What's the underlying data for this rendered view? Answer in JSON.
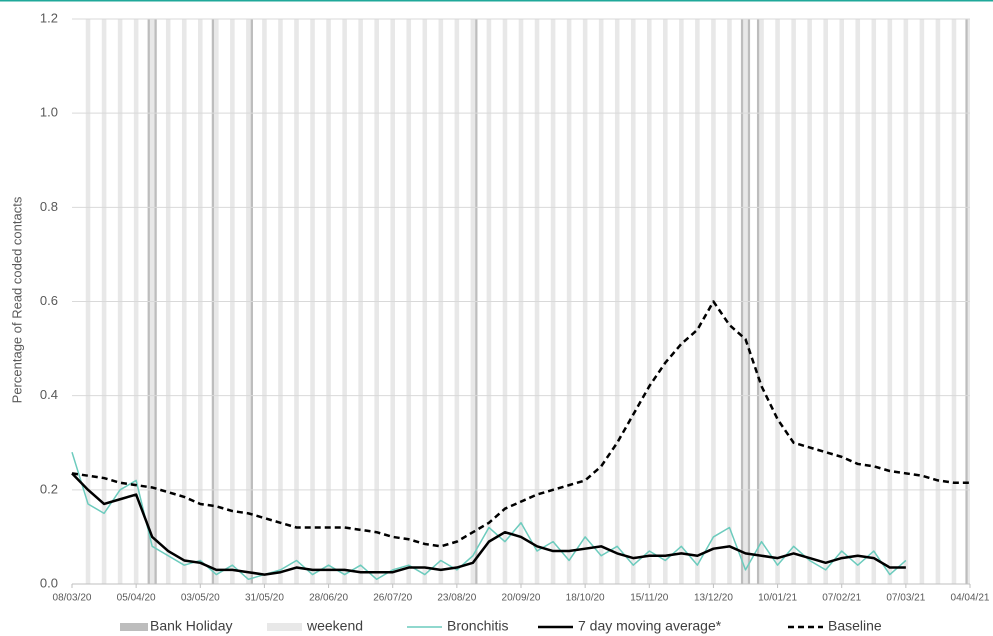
{
  "chart_data": {
    "type": "line",
    "y_label": "Percentage of Read coded contacts",
    "x": [
      "08/03/20",
      "15/03/20",
      "22/03/20",
      "29/03/20",
      "05/04/20",
      "12/04/20",
      "19/04/20",
      "26/04/20",
      "03/05/20",
      "10/05/20",
      "17/05/20",
      "24/05/20",
      "31/05/20",
      "07/06/20",
      "14/06/20",
      "21/06/20",
      "28/06/20",
      "05/07/20",
      "12/07/20",
      "19/07/20",
      "26/07/20",
      "02/08/20",
      "09/08/20",
      "16/08/20",
      "23/08/20",
      "30/08/20",
      "06/09/20",
      "13/09/20",
      "20/09/20",
      "27/09/20",
      "04/10/20",
      "11/10/20",
      "18/10/20",
      "25/10/20",
      "01/11/20",
      "08/11/20",
      "15/11/20",
      "22/11/20",
      "29/11/20",
      "06/12/20",
      "13/12/20",
      "20/12/20",
      "27/12/20",
      "03/01/21",
      "10/01/21",
      "17/01/21",
      "24/01/21",
      "31/01/21",
      "07/02/21",
      "14/02/21",
      "21/02/21",
      "28/02/21",
      "07/03/21",
      "14/03/21",
      "21/03/21",
      "28/03/21",
      "04/04/21"
    ],
    "xlim": [
      "08/03/20",
      "04/04/21"
    ],
    "xticks": [
      "08/03/20",
      "05/04/20",
      "03/05/20",
      "31/05/20",
      "28/06/20",
      "26/07/20",
      "23/08/20",
      "20/09/20",
      "18/10/20",
      "15/11/20",
      "13/12/20",
      "10/01/21",
      "07/02/21",
      "07/03/21",
      "04/04/21"
    ],
    "ylim": [
      0,
      1.2
    ],
    "yticks": [
      {
        "value": 0,
        "label": "0.0"
      },
      0.2,
      0.4,
      0.6,
      0.8,
      {
        "value": 1,
        "label": "1.0"
      },
      1.2
    ],
    "grid": true,
    "bank_holidays": {
      "name": "Bank Holiday",
      "color": "#bdbdbd",
      "dates": [
        "10/04/20",
        "13/04/20",
        "08/05/20",
        "25/05/20",
        "31/08/20",
        "25/12/20",
        "28/12/20",
        "01/01/21",
        "02/04/21"
      ]
    },
    "weekends": {
      "name": "weekend",
      "color": "#e8e8e8"
    },
    "series": [
      {
        "name": "Bronchitis",
        "color": "#6ccbbd",
        "style": "solid",
        "width": 1.5,
        "values": [
          0.28,
          0.17,
          0.15,
          0.2,
          0.22,
          0.08,
          0.06,
          0.04,
          0.05,
          0.02,
          0.04,
          0.01,
          0.02,
          0.03,
          0.05,
          0.02,
          0.04,
          0.02,
          0.04,
          0.01,
          0.03,
          0.04,
          0.02,
          0.05,
          0.03,
          0.06,
          0.12,
          0.09,
          0.13,
          0.07,
          0.09,
          0.05,
          0.1,
          0.06,
          0.08,
          0.04,
          0.07,
          0.05,
          0.08,
          0.04,
          0.1,
          0.12,
          0.03,
          0.09,
          0.04,
          0.08,
          0.05,
          0.03,
          0.07,
          0.04,
          0.07,
          0.02,
          0.05,
          null,
          null,
          null,
          null
        ]
      },
      {
        "name": "7 day moving average*",
        "color": "#000000",
        "style": "solid",
        "width": 2.5,
        "values": [
          0.235,
          0.2,
          0.17,
          0.18,
          0.19,
          0.1,
          0.07,
          0.05,
          0.045,
          0.03,
          0.03,
          0.025,
          0.02,
          0.025,
          0.035,
          0.03,
          0.03,
          0.03,
          0.025,
          0.025,
          0.025,
          0.035,
          0.035,
          0.03,
          0.035,
          0.045,
          0.09,
          0.11,
          0.1,
          0.08,
          0.07,
          0.07,
          0.075,
          0.08,
          0.065,
          0.055,
          0.06,
          0.06,
          0.065,
          0.06,
          0.075,
          0.08,
          0.065,
          0.06,
          0.055,
          0.065,
          0.055,
          0.045,
          0.055,
          0.06,
          0.055,
          0.035,
          0.035,
          null,
          null,
          null,
          null
        ]
      },
      {
        "name": "Baseline",
        "color": "#000000",
        "style": "dashed",
        "width": 2.5,
        "values": [
          0.235,
          0.23,
          0.225,
          0.215,
          0.21,
          0.205,
          0.195,
          0.185,
          0.17,
          0.165,
          0.155,
          0.15,
          0.14,
          0.13,
          0.12,
          0.12,
          0.12,
          0.12,
          0.115,
          0.11,
          0.1,
          0.095,
          0.085,
          0.08,
          0.09,
          0.11,
          0.13,
          0.16,
          0.175,
          0.19,
          0.2,
          0.21,
          0.22,
          0.25,
          0.3,
          0.36,
          0.42,
          0.47,
          0.51,
          0.54,
          0.6,
          0.55,
          0.52,
          0.42,
          0.35,
          0.3,
          0.29,
          0.28,
          0.27,
          0.255,
          0.25,
          0.24,
          0.235,
          0.23,
          0.22,
          0.215,
          0.215
        ]
      }
    ]
  }
}
